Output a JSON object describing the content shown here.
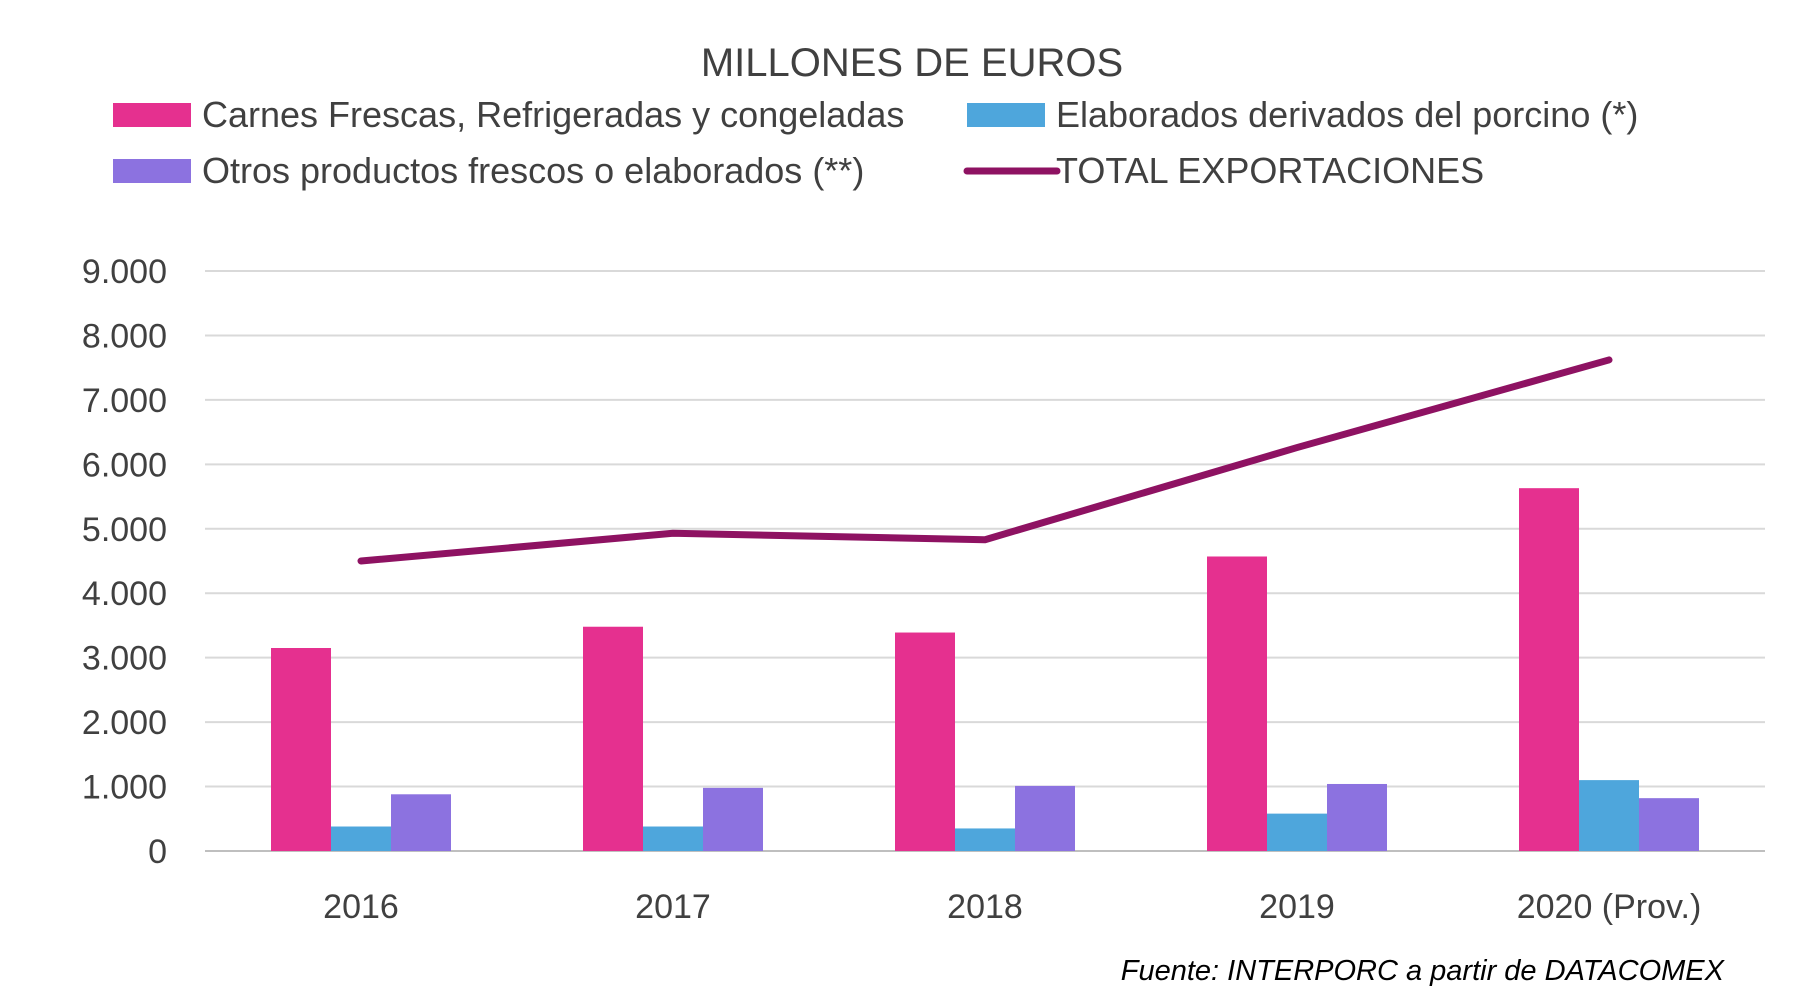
{
  "chart_data": {
    "type": "bar",
    "title": "MILLONES DE EUROS",
    "categories": [
      "2016",
      "2017",
      "2018",
      "2019",
      "2020 (Prov.)"
    ],
    "ylim": [
      0,
      9000
    ],
    "yticks": [
      0,
      1000,
      2000,
      3000,
      4000,
      5000,
      6000,
      7000,
      8000,
      9000
    ],
    "ytick_labels": [
      "0",
      "1.000",
      "2.000",
      "3.000",
      "4.000",
      "5.000",
      "6.000",
      "7.000",
      "8.000",
      "9.000"
    ],
    "grid": true,
    "legend_position": "top",
    "series": [
      {
        "name": "Carnes Frescas, Refrigeradas y congeladas",
        "kind": "bar",
        "color": "#E5308F",
        "values": [
          3150,
          3480,
          3390,
          4570,
          5630
        ]
      },
      {
        "name": "Elaborados derivados del porcino (*)",
        "kind": "bar",
        "color": "#4EA6DC",
        "values": [
          380,
          380,
          350,
          580,
          1100
        ]
      },
      {
        "name": "Otros productos frescos o elaborados (**)",
        "kind": "bar",
        "color": "#8C72E0",
        "values": [
          880,
          980,
          1010,
          1040,
          820
        ]
      },
      {
        "name": "TOTAL EXPORTACIONES",
        "kind": "line",
        "color": "#8E1262",
        "values": [
          4500,
          4930,
          4830,
          6260,
          7620
        ]
      }
    ]
  },
  "source_text": "Fuente: INTERPORC  a partir de DATACOMEX"
}
